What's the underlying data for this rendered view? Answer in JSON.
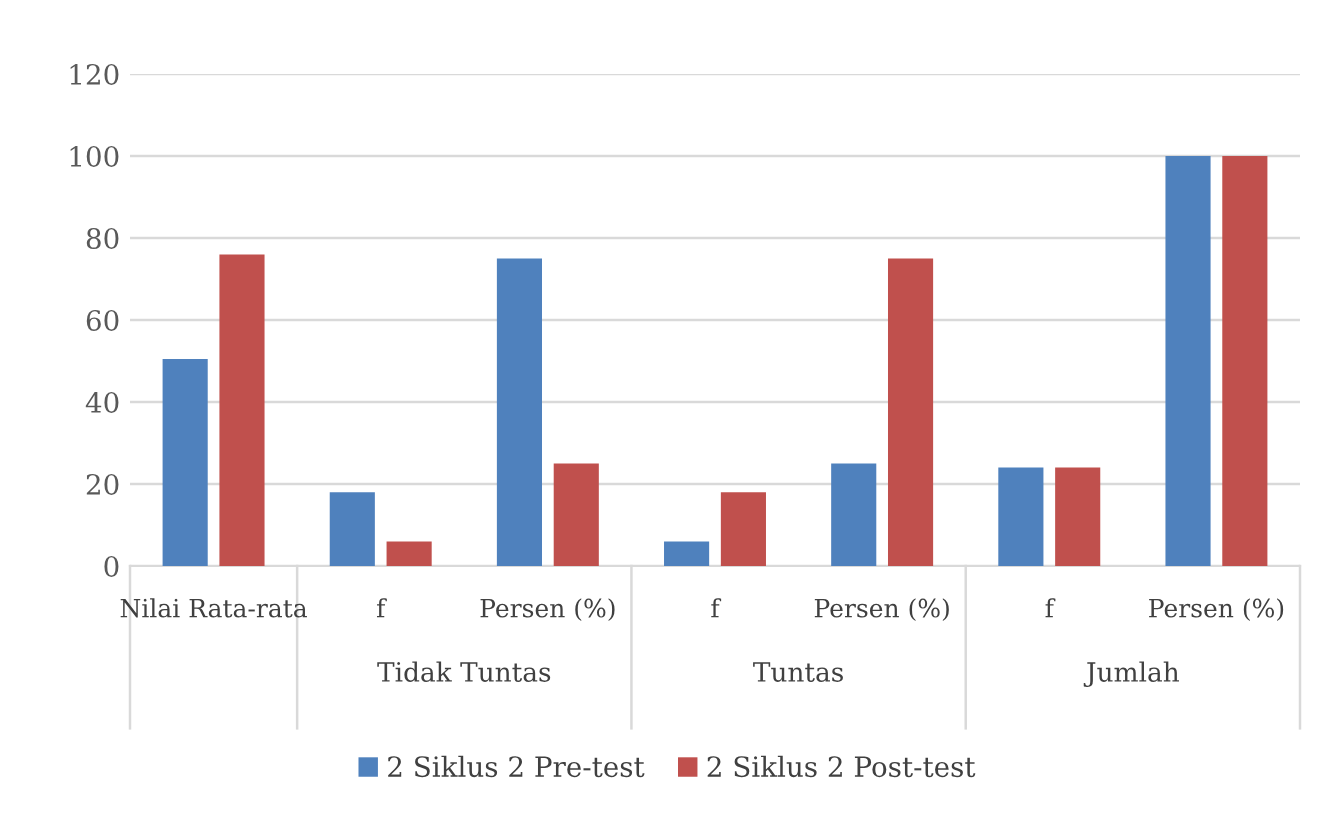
{
  "chart_data": {
    "type": "bar",
    "categories": [
      "Nilai Rata-rata",
      "f",
      "Persen (%)",
      "f",
      "Persen (%)",
      "f",
      "Persen (%)"
    ],
    "series": [
      {
        "name": "2 Siklus 2 Pre-test",
        "color": "#4f81bd",
        "values": [
          50.5,
          18,
          75,
          6,
          25,
          24,
          100
        ]
      },
      {
        "name": "2 Siklus 2 Post-test",
        "color": "#c0504d",
        "values": [
          76,
          6,
          25,
          18,
          75,
          24,
          100
        ]
      }
    ],
    "annotations": [
      "Tidak Tuntas",
      "Tuntas",
      "Jumlah"
    ],
    "ylim": [
      0,
      120
    ],
    "yticks": [
      0,
      20,
      40,
      60,
      80,
      100,
      120
    ],
    "grid": "y",
    "legend": "bottom"
  }
}
